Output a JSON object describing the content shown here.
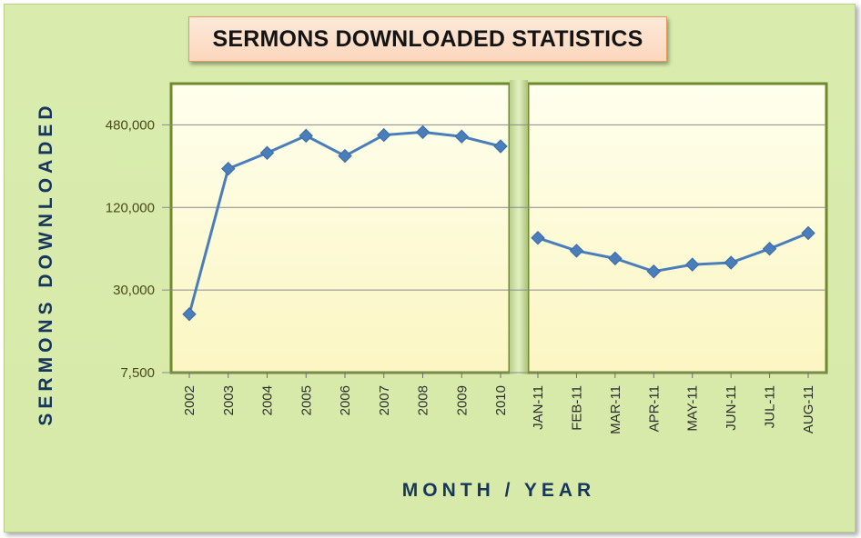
{
  "chart_data": {
    "type": "line",
    "title": "SERMONS DOWNLOADED STATISTICS",
    "xlabel": "MONTH / YEAR",
    "ylabel": "SERMONS DOWNLOADED",
    "y_scale": "log",
    "ylim": [
      7500,
      960000
    ],
    "yticks": [
      7500,
      30000,
      120000,
      480000
    ],
    "ytick_labels": [
      "7,500",
      "30,000",
      "120,000",
      "480,000"
    ],
    "grid": true,
    "panels": [
      {
        "name": "yearly",
        "categories": [
          "2002",
          "2003",
          "2004",
          "2005",
          "2006",
          "2007",
          "2008",
          "2009",
          "2010"
        ],
        "values": [
          20000,
          230000,
          300000,
          400000,
          285000,
          405000,
          425000,
          395000,
          335000
        ]
      },
      {
        "name": "monthly",
        "categories": [
          "JAN-11",
          "FEB-11",
          "MAR-11",
          "APR-11",
          "MAY-11",
          "JUN-11",
          "JUL-11",
          "AUG-11"
        ],
        "values": [
          72000,
          58000,
          51000,
          41000,
          46000,
          47500,
          60000,
          78000
        ]
      }
    ],
    "colors": {
      "line": "#4a7ebb",
      "marker": "#4a7ebb",
      "plot_bg": "#fdfbd0",
      "plot_border": "#6e8a2a"
    }
  }
}
